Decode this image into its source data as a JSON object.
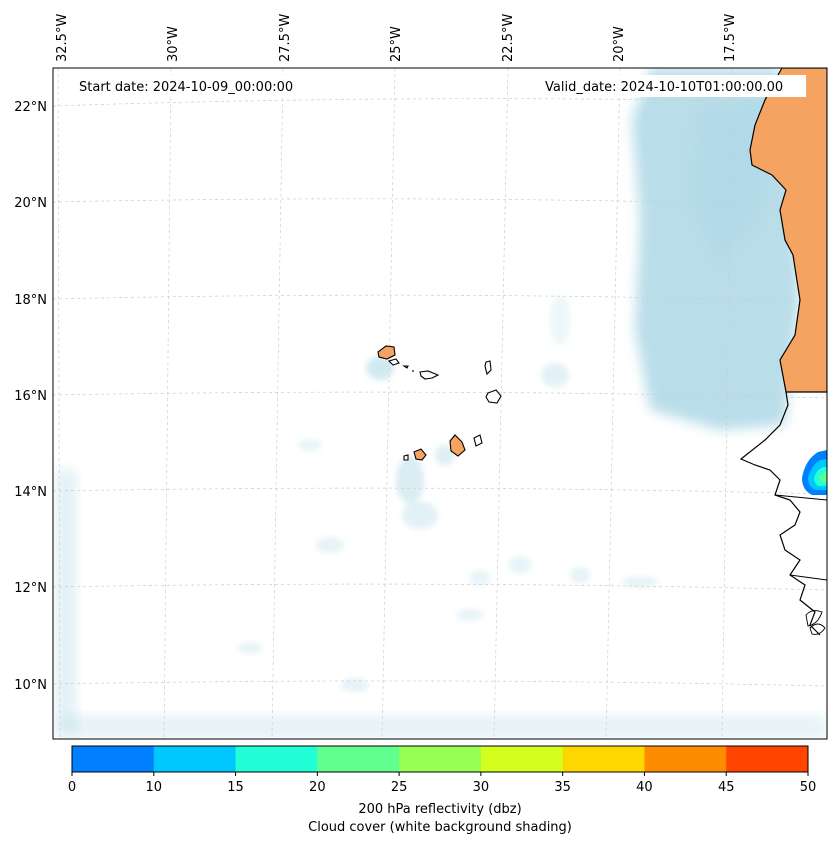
{
  "map": {
    "start_label": "Start date: 2024-10-09_00:00:00",
    "valid_label": "Valid_date: 2024-10-10T01:00:00.00",
    "lon_labels": [
      "32.5°W",
      "30°W",
      "27.5°W",
      "25°W",
      "22.5°W",
      "20°W",
      "17.5°W"
    ],
    "lat_labels": [
      "22°N",
      "20°N",
      "18°N",
      "16°N",
      "14°N",
      "12°N",
      "10°N"
    ],
    "colors": {
      "cloud": "#add8e6",
      "land": "#f4a460",
      "coast": "#000000",
      "grid": "#cccccc"
    }
  },
  "colorbar": {
    "ticks": [
      "0",
      "10",
      "15",
      "20",
      "25",
      "30",
      "35",
      "40",
      "45",
      "50"
    ],
    "colors": [
      "#0080ff",
      "#00c8ff",
      "#22ffd6",
      "#60ff8e",
      "#98ff54",
      "#d4ff1e",
      "#ffd700",
      "#ff8c00",
      "#ff4500"
    ],
    "label_line1": "200 hPa reflectivity (dbz)",
    "label_line2": "Cloud cover (white background shading)"
  }
}
